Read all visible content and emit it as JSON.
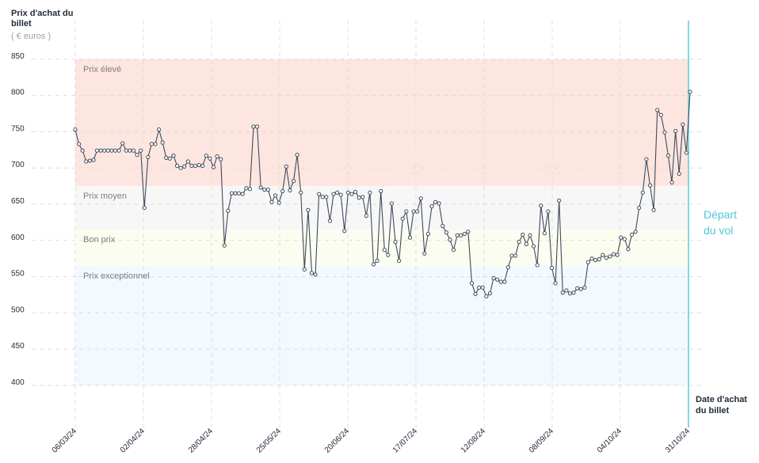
{
  "chart_data": {
    "type": "line",
    "ylabel": "Prix d'achat du billet",
    "yunit": "( € euros )",
    "xlabel": "Date d'achat du billet",
    "ylim": [
      400,
      850
    ],
    "yticks": [
      400,
      450,
      500,
      550,
      600,
      650,
      700,
      750,
      800,
      850
    ],
    "xtick_labels": [
      "06/03/24",
      "02/04/24",
      "28/04/24",
      "25/05/24",
      "20/06/24",
      "17/07/24",
      "12/08/24",
      "08/09/24",
      "04/10/24",
      "31/10/24"
    ],
    "grid": true,
    "bands": [
      {
        "label": "Prix élevé",
        "from": 675,
        "to": 850,
        "color": "#fde6df"
      },
      {
        "label": "Prix moyen",
        "from": 615,
        "to": 675,
        "color": "#f7f7f7"
      },
      {
        "label": "Bon prix",
        "from": 565,
        "to": 615,
        "color": "#fcfdf1"
      },
      {
        "label": "Prix exceptionnel",
        "from": 400,
        "to": 565,
        "color": "#f3f9fe"
      }
    ],
    "marker": {
      "label": "Départ du vol",
      "x": "31/10/24",
      "color": "#4fc7d9"
    },
    "line_color": "#3e4a5c",
    "series": [
      {
        "values": [
          753,
          733,
          724,
          709,
          710,
          711,
          724,
          724,
          724,
          724,
          724,
          724,
          724,
          734,
          724,
          724,
          724,
          718,
          724,
          645,
          715,
          733,
          733,
          753,
          735,
          714,
          713,
          717,
          703,
          700,
          702,
          709,
          703,
          703,
          704,
          703,
          717,
          713,
          701,
          716,
          712,
          593,
          641,
          665,
          665,
          665,
          664,
          672,
          671,
          757,
          757,
          673,
          670,
          670,
          653,
          662,
          652,
          668,
          702,
          669,
          682,
          718,
          666,
          560,
          642,
          555,
          553,
          664,
          660,
          660,
          627,
          664,
          666,
          663,
          613,
          666,
          664,
          667,
          659,
          660,
          634,
          666,
          567,
          572,
          668,
          587,
          580,
          651,
          598,
          572,
          630,
          640,
          604,
          640,
          640,
          658,
          582,
          609,
          647,
          653,
          651,
          620,
          611,
          601,
          587,
          607,
          607,
          609,
          612,
          541,
          526,
          535,
          535,
          523,
          527,
          548,
          546,
          543,
          543,
          563,
          579,
          579,
          598,
          608,
          595,
          607,
          592,
          566,
          648,
          610,
          640,
          562,
          541,
          655,
          528,
          531,
          527,
          528,
          534,
          533,
          535,
          570,
          575,
          573,
          574,
          580,
          576,
          578,
          581,
          580,
          604,
          602,
          588,
          608,
          612,
          645,
          666,
          712,
          676,
          642,
          780,
          773,
          749,
          717,
          680,
          751,
          692,
          760,
          721,
          805
        ]
      }
    ]
  },
  "labels": {
    "ytitle": "Prix d'achat du billet",
    "yunit": "( € euros )",
    "xtitle": "Date d'achat du billet",
    "depart": "Départ du vol"
  }
}
